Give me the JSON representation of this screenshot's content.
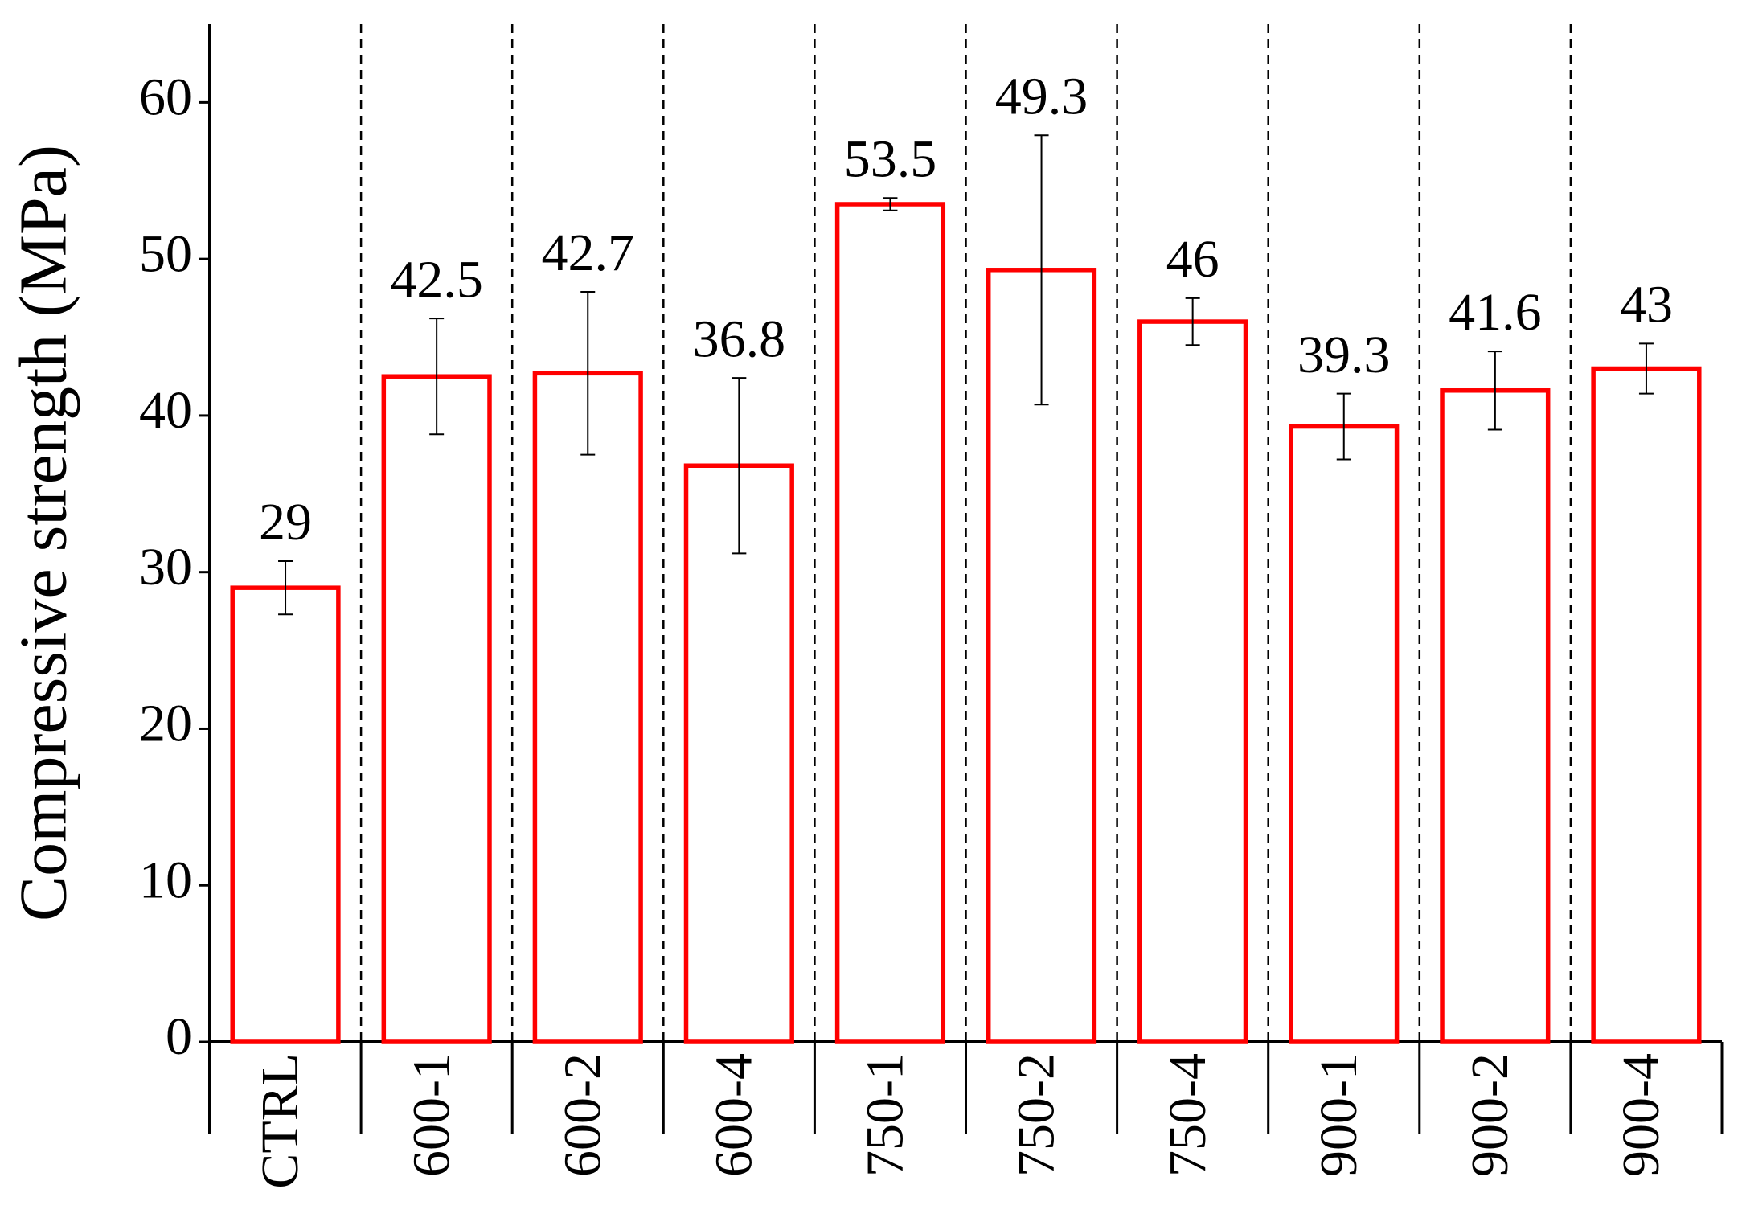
{
  "chart_data": {
    "type": "bar",
    "y_label": "Compressive strength (MPa)",
    "categories": [
      "CTRL",
      "600-1",
      "600-2",
      "600-4",
      "750-1",
      "750-2",
      "750-4",
      "900-1",
      "900-2",
      "900-4"
    ],
    "values": [
      29,
      42.5,
      42.7,
      36.8,
      53.5,
      49.3,
      46,
      39.3,
      41.6,
      43
    ],
    "errors": [
      1.7,
      3.7,
      5.2,
      5.6,
      0.4,
      8.6,
      1.5,
      2.1,
      2.5,
      1.6
    ],
    "color": "#ff0000",
    "ylim": [
      0,
      65
    ],
    "yticks": [
      0,
      10,
      20,
      30,
      40,
      50,
      60
    ]
  }
}
